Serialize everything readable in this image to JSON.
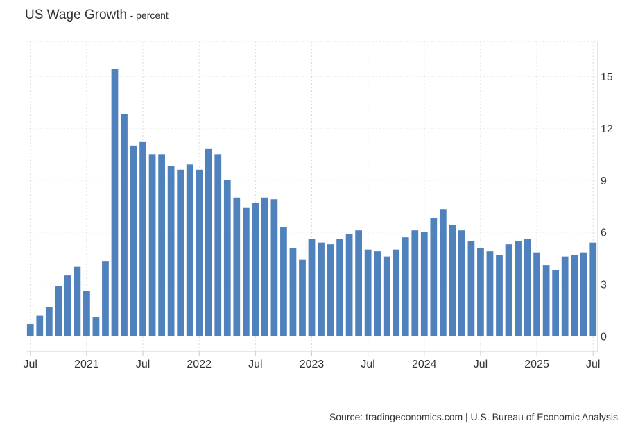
{
  "title": "US Wage Growth",
  "subtitle": "- percent",
  "source": "Source: tradingeconomics.com | U.S. Bureau of Economic Analysis",
  "chart_data": {
    "type": "bar",
    "title": "US Wage Growth",
    "subtitle": "- percent",
    "bar_color": "#4f81bd",
    "x_start": "2020-07",
    "categories": [
      "2020-07",
      "2020-08",
      "2020-09",
      "2020-10",
      "2020-11",
      "2020-12",
      "2021-01",
      "2021-02",
      "2021-03",
      "2021-04",
      "2021-05",
      "2021-06",
      "2021-07",
      "2021-08",
      "2021-09",
      "2021-10",
      "2021-11",
      "2021-12",
      "2022-01",
      "2022-02",
      "2022-03",
      "2022-04",
      "2022-05",
      "2022-06",
      "2022-07",
      "2022-08",
      "2022-09",
      "2022-10",
      "2022-11",
      "2022-12",
      "2023-01",
      "2023-02",
      "2023-03",
      "2023-04",
      "2023-05",
      "2023-06",
      "2023-07",
      "2023-08",
      "2023-09",
      "2023-10",
      "2023-11",
      "2023-12",
      "2024-01",
      "2024-02",
      "2024-03",
      "2024-04",
      "2024-05",
      "2024-06",
      "2024-07",
      "2024-08",
      "2024-09",
      "2024-10",
      "2024-11",
      "2024-12",
      "2025-01",
      "2025-02",
      "2025-03",
      "2025-04",
      "2025-05",
      "2025-06",
      "2025-07"
    ],
    "values": [
      0.7,
      1.2,
      1.7,
      2.9,
      3.5,
      4.0,
      2.6,
      1.1,
      4.3,
      15.4,
      12.8,
      11.0,
      11.2,
      10.5,
      10.5,
      9.8,
      9.6,
      9.9,
      9.6,
      10.8,
      10.5,
      9.0,
      8.0,
      7.4,
      7.7,
      8.0,
      7.9,
      6.3,
      5.1,
      4.4,
      5.6,
      5.4,
      5.3,
      5.6,
      5.9,
      6.1,
      5.0,
      4.9,
      4.6,
      5.0,
      5.7,
      6.1,
      6.0,
      6.8,
      7.3,
      6.4,
      6.1,
      5.5,
      5.1,
      4.9,
      4.7,
      5.3,
      5.5,
      5.6,
      4.8,
      4.1,
      3.8,
      4.6,
      4.7,
      4.8,
      5.4
    ],
    "ylim": [
      -0.9,
      17
    ],
    "y_ticks": [
      0,
      3,
      6,
      9,
      12,
      15
    ],
    "x_ticks": [
      {
        "label": "Jul",
        "date": "2020-07"
      },
      {
        "label": "2021",
        "date": "2021-01"
      },
      {
        "label": "Jul",
        "date": "2021-07"
      },
      {
        "label": "2022",
        "date": "2022-01"
      },
      {
        "label": "Jul",
        "date": "2022-07"
      },
      {
        "label": "2023",
        "date": "2023-01"
      },
      {
        "label": "Jul",
        "date": "2023-07"
      },
      {
        "label": "2024",
        "date": "2024-01"
      },
      {
        "label": "Jul",
        "date": "2024-07"
      },
      {
        "label": "2025",
        "date": "2025-01"
      },
      {
        "label": "Jul",
        "date": "2025-07"
      }
    ],
    "grid": true,
    "y_axis_side": "right",
    "legend": "none"
  }
}
